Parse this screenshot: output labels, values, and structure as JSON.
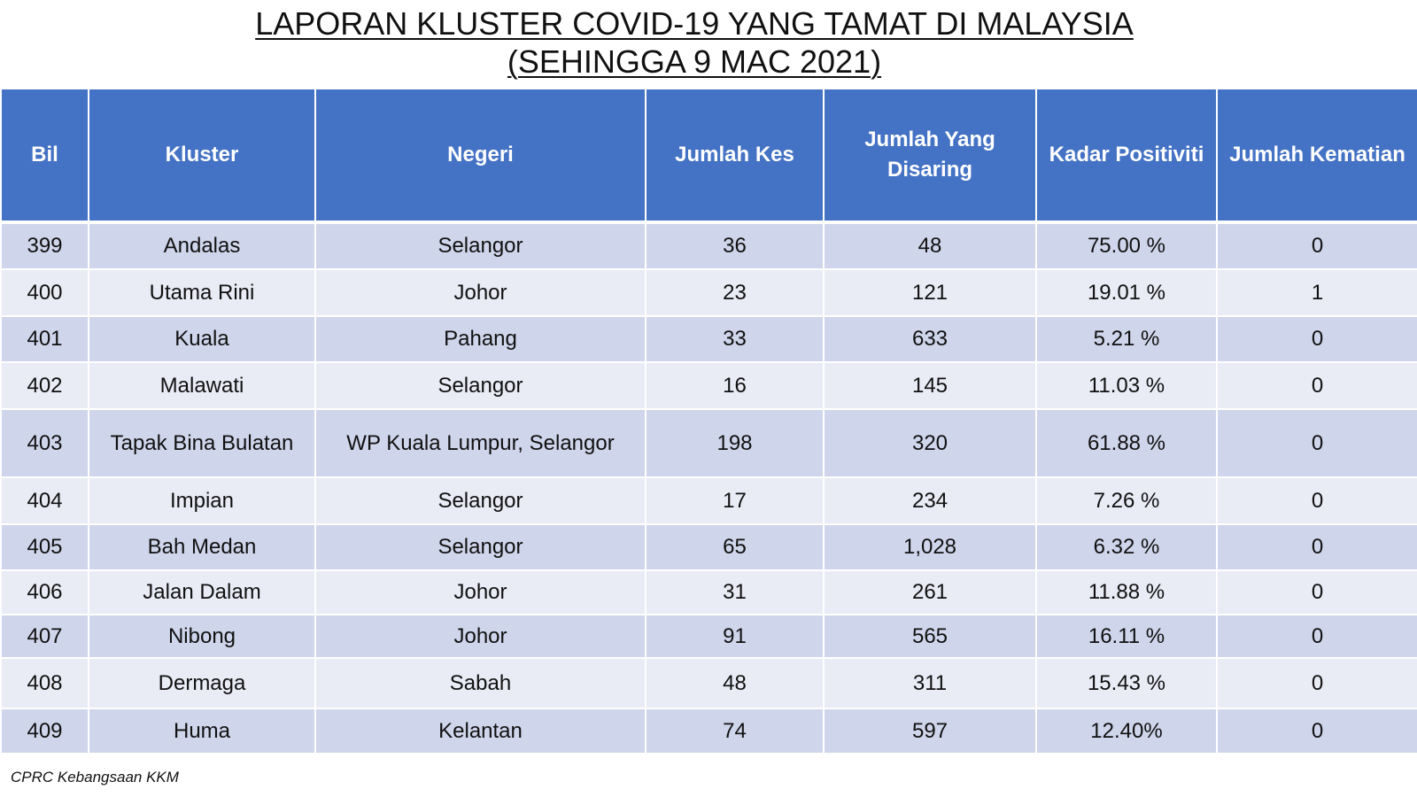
{
  "title": {
    "line1": "LAPORAN KLUSTER COVID-19 YANG TAMAT DI MALAYSIA",
    "line2": "(SEHINGGA  9 MAC 2021)"
  },
  "table": {
    "headers": [
      "Bil",
      "Kluster",
      "Negeri",
      "Jumlah Kes",
      "Jumlah Yang Disaring",
      "Kadar Positiviti",
      "Jumlah Kematian"
    ],
    "rows": [
      [
        "399",
        "Andalas",
        "Selangor",
        "36",
        "48",
        "75.00 %",
        "0"
      ],
      [
        "400",
        "Utama Rini",
        "Johor",
        "23",
        "121",
        "19.01 %",
        "1"
      ],
      [
        "401",
        "Kuala",
        "Pahang",
        "33",
        "633",
        "5.21 %",
        "0"
      ],
      [
        "402",
        "Malawati",
        "Selangor",
        "16",
        "145",
        "11.03 %",
        "0"
      ],
      [
        "403",
        "Tapak Bina Bulatan",
        "WP Kuala Lumpur, Selangor",
        "198",
        "320",
        "61.88 %",
        "0"
      ],
      [
        "404",
        "Impian",
        "Selangor",
        "17",
        "234",
        "7.26 %",
        "0"
      ],
      [
        "405",
        "Bah Medan",
        "Selangor",
        "65",
        "1,028",
        "6.32 %",
        "0"
      ],
      [
        "406",
        "Jalan Dalam",
        "Johor",
        "31",
        "261",
        "11.88 %",
        "0"
      ],
      [
        "407",
        "Nibong",
        "Johor",
        "91",
        "565",
        "16.11 %",
        "0"
      ],
      [
        "408",
        "Dermaga",
        "Sabah",
        "48",
        "311",
        "15.43 %",
        "0"
      ],
      [
        "409",
        "Huma",
        "Kelantan",
        "74",
        "597",
        "12.40%",
        "0"
      ]
    ]
  },
  "footer": "CPRC Kebangsaan KKM",
  "colors": {
    "header_bg": "#4472c4",
    "row_odd": "#cfd5ea",
    "row_even": "#e9ebf5"
  }
}
